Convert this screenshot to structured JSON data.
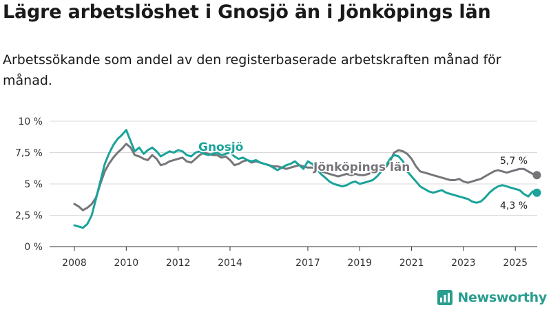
{
  "title": "Lägre arbetslöshet i Gnosjö än i Jönköpings län",
  "subtitle": "Arbetssökande som andel av den registerbaserade arbetskraften månad för månad.",
  "brand": "Newsworthy",
  "colors": {
    "gnosjo": "#1aa39a",
    "lan": "#76757a",
    "grid": "#d9d9d9",
    "brand": "#2a9d8f"
  },
  "chart_data": {
    "type": "line",
    "title": "Lägre arbetslöshet i Gnosjö än i Jönköpings län",
    "xlabel": "",
    "ylabel": "",
    "ylim": [
      0,
      10
    ],
    "xlim": [
      2008,
      2026.8
    ],
    "y_ticks": [
      0,
      2.5,
      5,
      7.5,
      10
    ],
    "y_tick_labels": [
      "0 %",
      "2,5 %",
      "5 %",
      "7,5 %",
      "10 %"
    ],
    "x_ticks": [
      2008,
      2010,
      2012,
      2014,
      2017,
      2019,
      2021,
      2023,
      2025
    ],
    "x_tick_labels": [
      "2008",
      "2010",
      "2012",
      "2014",
      "2017",
      "2019",
      "2021",
      "2023",
      "2025"
    ],
    "series": [
      {
        "name": "Jönköpings län",
        "label": "Jönköpings län",
        "end_label": "5,7 %",
        "x": [
          2008.0,
          2008.17,
          2008.33,
          2008.5,
          2008.67,
          2008.83,
          2009.0,
          2009.17,
          2009.33,
          2009.5,
          2009.67,
          2009.83,
          2010.0,
          2010.17,
          2010.33,
          2010.5,
          2010.67,
          2010.83,
          2011.0,
          2011.17,
          2011.33,
          2011.5,
          2011.67,
          2011.83,
          2012.0,
          2012.17,
          2012.33,
          2012.5,
          2012.67,
          2012.83,
          2013.0,
          2013.17,
          2013.33,
          2013.5,
          2013.67,
          2013.83,
          2014.0,
          2014.17,
          2014.33,
          2014.5,
          2014.67,
          2014.83,
          2015.0,
          2015.17,
          2015.33,
          2015.5,
          2015.67,
          2015.83,
          2016.0,
          2016.17,
          2016.33,
          2016.5,
          2016.67,
          2016.83,
          2017.0,
          2017.17,
          2017.33,
          2017.5,
          2017.67,
          2017.83,
          2018.0,
          2018.17,
          2018.33,
          2018.5,
          2018.67,
          2018.83,
          2019.0,
          2019.17,
          2019.33,
          2019.5,
          2019.67,
          2019.83,
          2020.0,
          2020.17,
          2020.33,
          2020.5,
          2020.67,
          2020.83,
          2021.0,
          2021.17,
          2021.33,
          2021.5,
          2021.67,
          2021.83,
          2022.0,
          2022.17,
          2022.33,
          2022.5,
          2022.67,
          2022.83,
          2023.0,
          2023.17,
          2023.33,
          2023.5,
          2023.67,
          2023.83,
          2024.0,
          2024.17,
          2024.33,
          2024.5,
          2024.67,
          2024.83,
          2025.0,
          2025.17,
          2025.33,
          2025.5,
          2025.67,
          2025.83
        ],
        "values": [
          3.4,
          3.2,
          2.9,
          3.1,
          3.4,
          3.9,
          5.0,
          6.0,
          6.6,
          7.1,
          7.5,
          7.8,
          8.2,
          7.9,
          7.3,
          7.2,
          7.0,
          6.9,
          7.3,
          7.0,
          6.5,
          6.6,
          6.8,
          6.9,
          7.0,
          7.1,
          6.8,
          6.7,
          7.0,
          7.3,
          7.5,
          7.4,
          7.3,
          7.3,
          7.1,
          7.2,
          6.9,
          6.5,
          6.6,
          6.8,
          6.9,
          6.7,
          6.8,
          6.7,
          6.6,
          6.5,
          6.4,
          6.4,
          6.3,
          6.2,
          6.3,
          6.4,
          6.5,
          6.4,
          6.3,
          6.3,
          6.2,
          6.0,
          5.9,
          5.8,
          5.7,
          5.6,
          5.7,
          5.8,
          5.7,
          5.8,
          5.7,
          5.7,
          5.8,
          5.9,
          6.0,
          6.2,
          6.3,
          6.8,
          7.5,
          7.7,
          7.6,
          7.4,
          7.0,
          6.4,
          6.0,
          5.9,
          5.8,
          5.7,
          5.6,
          5.5,
          5.4,
          5.3,
          5.3,
          5.4,
          5.2,
          5.1,
          5.2,
          5.3,
          5.4,
          5.6,
          5.8,
          6.0,
          6.1,
          6.0,
          5.9,
          6.0,
          6.1,
          6.2,
          6.2,
          6.0,
          5.8,
          5.7
        ]
      },
      {
        "name": "Gnosjö",
        "label": "Gnosjö",
        "end_label": "4,3 %",
        "x": [
          2008.0,
          2008.17,
          2008.33,
          2008.5,
          2008.67,
          2008.83,
          2009.0,
          2009.17,
          2009.33,
          2009.5,
          2009.67,
          2009.83,
          2010.0,
          2010.17,
          2010.33,
          2010.5,
          2010.67,
          2010.83,
          2011.0,
          2011.17,
          2011.33,
          2011.5,
          2011.67,
          2011.83,
          2012.0,
          2012.17,
          2012.33,
          2012.5,
          2012.67,
          2012.83,
          2013.0,
          2013.17,
          2013.33,
          2013.5,
          2013.67,
          2013.83,
          2014.0,
          2014.17,
          2014.33,
          2014.5,
          2014.67,
          2014.83,
          2015.0,
          2015.17,
          2015.33,
          2015.5,
          2015.67,
          2015.83,
          2016.0,
          2016.17,
          2016.33,
          2016.5,
          2016.67,
          2016.83,
          2017.0,
          2017.17,
          2017.33,
          2017.5,
          2017.67,
          2017.83,
          2018.0,
          2018.17,
          2018.33,
          2018.5,
          2018.67,
          2018.83,
          2019.0,
          2019.17,
          2019.33,
          2019.5,
          2019.67,
          2019.83,
          2020.0,
          2020.17,
          2020.33,
          2020.5,
          2020.67,
          2020.83,
          2021.0,
          2021.17,
          2021.33,
          2021.5,
          2021.67,
          2021.83,
          2022.0,
          2022.17,
          2022.33,
          2022.5,
          2022.67,
          2022.83,
          2023.0,
          2023.17,
          2023.33,
          2023.5,
          2023.67,
          2023.83,
          2024.0,
          2024.17,
          2024.33,
          2024.5,
          2024.67,
          2024.83,
          2025.0,
          2025.17,
          2025.33,
          2025.5,
          2025.67,
          2025.83
        ],
        "values": [
          1.7,
          1.6,
          1.5,
          1.8,
          2.5,
          3.8,
          5.2,
          6.6,
          7.4,
          8.1,
          8.6,
          8.9,
          9.3,
          8.4,
          7.6,
          7.9,
          7.4,
          7.7,
          7.9,
          7.6,
          7.2,
          7.4,
          7.6,
          7.5,
          7.7,
          7.6,
          7.3,
          7.2,
          7.5,
          7.6,
          7.4,
          7.3,
          7.4,
          7.5,
          7.3,
          7.4,
          7.5,
          7.2,
          7.0,
          7.1,
          6.9,
          6.8,
          6.9,
          6.7,
          6.6,
          6.5,
          6.3,
          6.1,
          6.3,
          6.5,
          6.6,
          6.8,
          6.5,
          6.2,
          6.8,
          6.6,
          6.2,
          5.8,
          5.5,
          5.2,
          5.0,
          4.9,
          4.8,
          4.9,
          5.1,
          5.2,
          5.0,
          5.1,
          5.2,
          5.3,
          5.6,
          6.0,
          6.4,
          7.0,
          7.3,
          7.2,
          6.8,
          6.0,
          5.6,
          5.2,
          4.8,
          4.6,
          4.4,
          4.3,
          4.4,
          4.5,
          4.3,
          4.2,
          4.1,
          4.0,
          3.9,
          3.8,
          3.6,
          3.5,
          3.6,
          3.9,
          4.3,
          4.6,
          4.8,
          4.9,
          4.8,
          4.7,
          4.6,
          4.5,
          4.2,
          4.0,
          4.4,
          4.3
        ]
      }
    ]
  }
}
